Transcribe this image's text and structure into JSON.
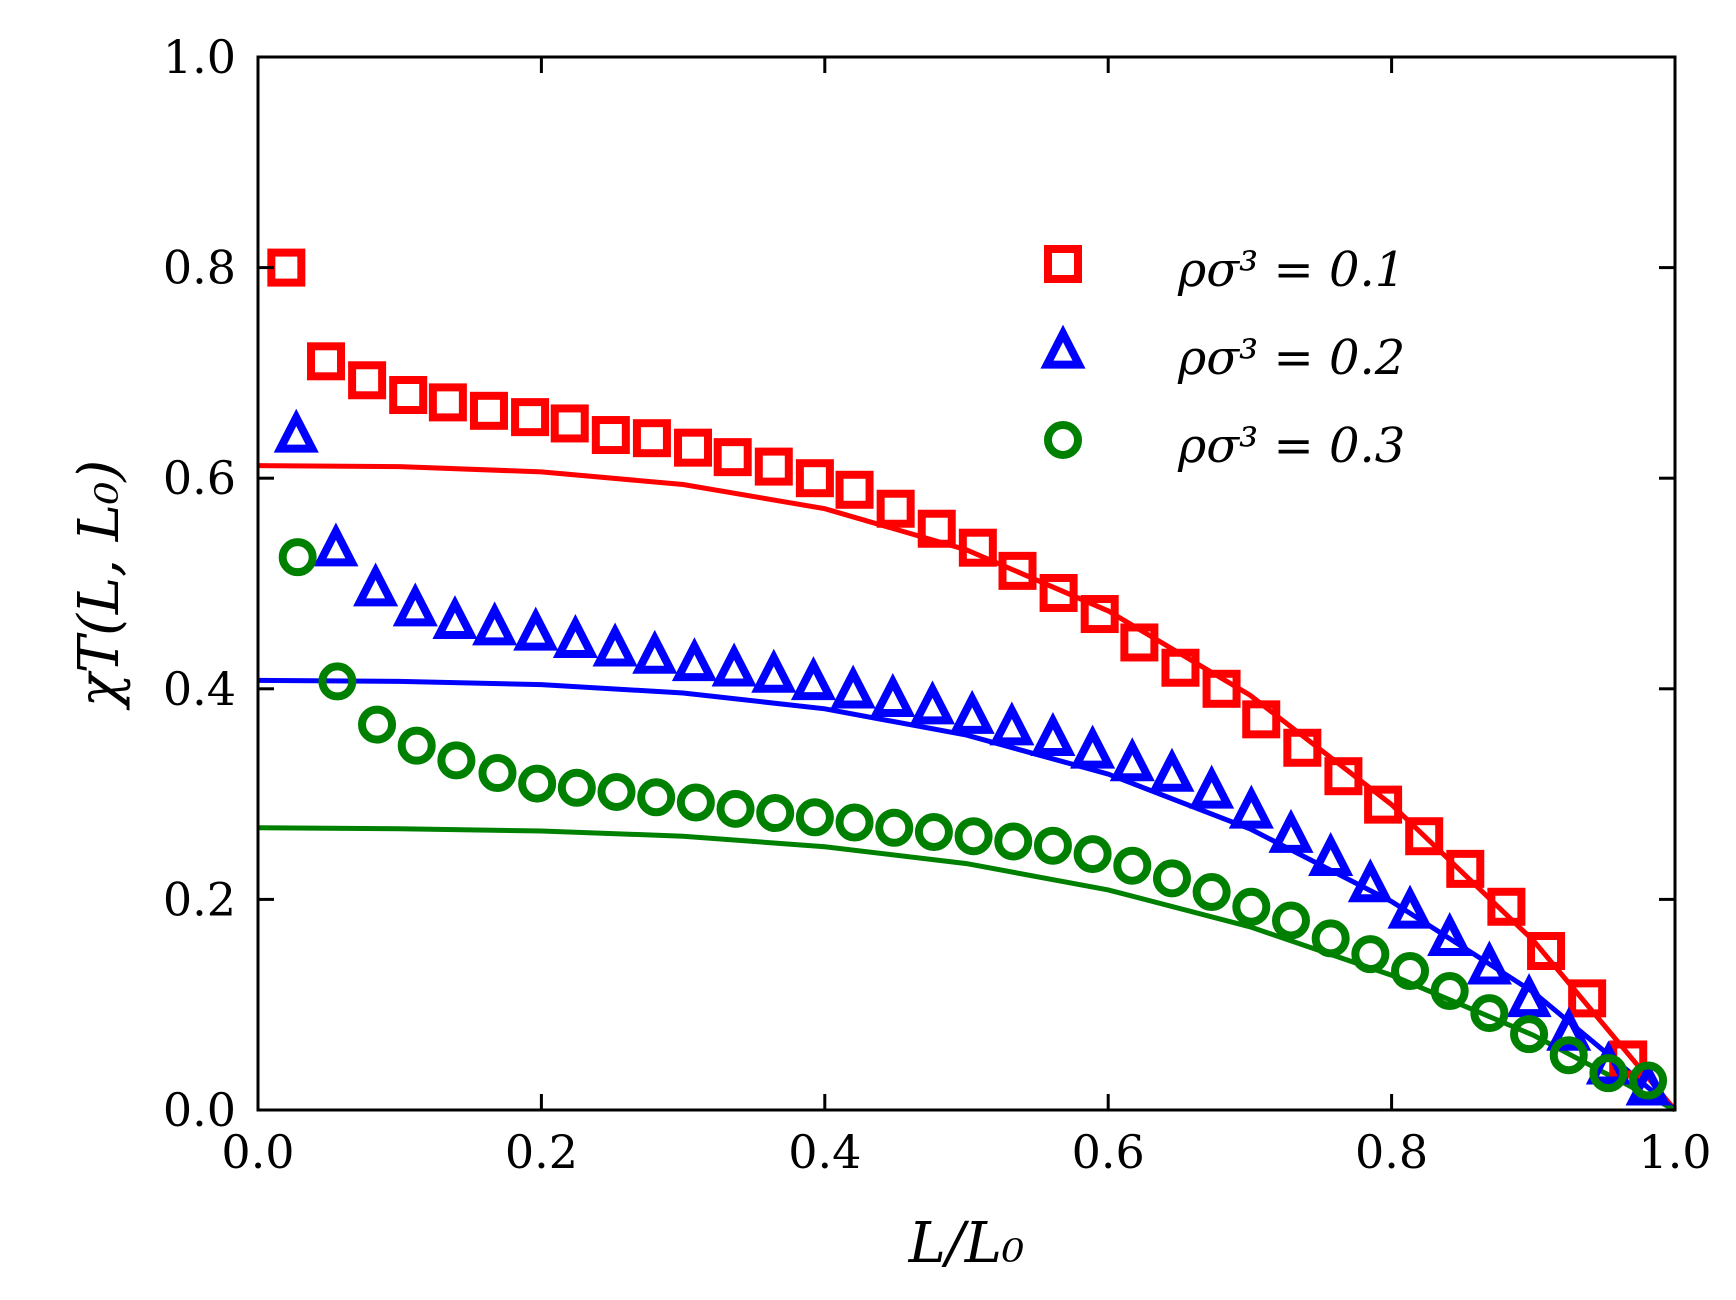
{
  "chart_data": {
    "type": "scatter",
    "title": "",
    "xlabel": "L/L₀",
    "ylabel": "χT(L, L₀)",
    "xlim": [
      0.0,
      1.0
    ],
    "ylim": [
      0.0,
      1.0
    ],
    "xticks": [
      "0.0",
      "0.2",
      "0.4",
      "0.6",
      "0.8",
      "1.0"
    ],
    "yticks": [
      "0.0",
      "0.2",
      "0.4",
      "0.6",
      "0.8",
      "1.0"
    ],
    "grid": false,
    "legend_position": "top-right",
    "series": [
      {
        "name": "ρσ³ = 0.1",
        "color": "#ff0000",
        "marker": "square",
        "x": [
          0.02,
          0.048,
          0.077,
          0.106,
          0.134,
          0.163,
          0.192,
          0.22,
          0.249,
          0.278,
          0.307,
          0.335,
          0.364,
          0.393,
          0.421,
          0.45,
          0.479,
          0.508,
          0.536,
          0.565,
          0.594,
          0.622,
          0.651,
          0.68,
          0.708,
          0.737,
          0.766,
          0.794,
          0.823,
          0.852,
          0.881,
          0.909,
          0.938,
          0.967
        ],
        "values": [
          0.8,
          0.711,
          0.693,
          0.679,
          0.672,
          0.664,
          0.658,
          0.652,
          0.641,
          0.638,
          0.629,
          0.62,
          0.611,
          0.6,
          0.589,
          0.571,
          0.552,
          0.534,
          0.512,
          0.491,
          0.471,
          0.444,
          0.42,
          0.4,
          0.371,
          0.344,
          0.317,
          0.29,
          0.26,
          0.229,
          0.193,
          0.151,
          0.106,
          0.048
        ],
        "curve_x": [
          0.0,
          0.1,
          0.2,
          0.3,
          0.4,
          0.5,
          0.6,
          0.7,
          0.8,
          0.9,
          1.0
        ],
        "curve_y": [
          0.612,
          0.611,
          0.606,
          0.594,
          0.571,
          0.532,
          0.474,
          0.394,
          0.29,
          0.161,
          0.0
        ]
      },
      {
        "name": "ρσ³ = 0.2",
        "color": "#0000ff",
        "marker": "triangle",
        "x": [
          0.027,
          0.055,
          0.083,
          0.111,
          0.139,
          0.167,
          0.196,
          0.224,
          0.252,
          0.28,
          0.308,
          0.336,
          0.364,
          0.392,
          0.42,
          0.448,
          0.476,
          0.504,
          0.532,
          0.561,
          0.589,
          0.617,
          0.645,
          0.673,
          0.701,
          0.729,
          0.757,
          0.785,
          0.813,
          0.841,
          0.869,
          0.897,
          0.925,
          0.953,
          0.981
        ],
        "values": [
          0.64,
          0.532,
          0.494,
          0.475,
          0.463,
          0.457,
          0.452,
          0.445,
          0.437,
          0.43,
          0.423,
          0.418,
          0.412,
          0.405,
          0.397,
          0.389,
          0.382,
          0.373,
          0.362,
          0.352,
          0.34,
          0.328,
          0.318,
          0.302,
          0.283,
          0.26,
          0.238,
          0.213,
          0.188,
          0.162,
          0.135,
          0.104,
          0.072,
          0.04,
          0.02
        ],
        "curve_x": [
          0.0,
          0.1,
          0.2,
          0.3,
          0.4,
          0.5,
          0.6,
          0.7,
          0.8,
          0.9,
          1.0
        ],
        "curve_y": [
          0.408,
          0.407,
          0.404,
          0.396,
          0.381,
          0.356,
          0.319,
          0.267,
          0.198,
          0.112,
          0.0
        ]
      },
      {
        "name": "ρσ³ = 0.3",
        "color": "#008000",
        "marker": "circle",
        "x": [
          0.028,
          0.056,
          0.084,
          0.112,
          0.14,
          0.169,
          0.197,
          0.225,
          0.253,
          0.281,
          0.309,
          0.337,
          0.365,
          0.393,
          0.421,
          0.449,
          0.477,
          0.505,
          0.533,
          0.561,
          0.589,
          0.617,
          0.645,
          0.673,
          0.701,
          0.729,
          0.757,
          0.785,
          0.813,
          0.841,
          0.869,
          0.897,
          0.925,
          0.953,
          0.981
        ],
        "values": [
          0.525,
          0.407,
          0.366,
          0.346,
          0.332,
          0.32,
          0.31,
          0.306,
          0.302,
          0.297,
          0.292,
          0.286,
          0.282,
          0.278,
          0.273,
          0.268,
          0.264,
          0.26,
          0.255,
          0.251,
          0.243,
          0.232,
          0.22,
          0.207,
          0.193,
          0.18,
          0.163,
          0.148,
          0.132,
          0.113,
          0.092,
          0.072,
          0.052,
          0.035,
          0.028
        ],
        "curve_x": [
          0.0,
          0.1,
          0.2,
          0.3,
          0.4,
          0.5,
          0.6,
          0.7,
          0.8,
          0.9,
          1.0
        ],
        "curve_y": [
          0.268,
          0.267,
          0.265,
          0.26,
          0.25,
          0.234,
          0.209,
          0.174,
          0.128,
          0.071,
          0.0
        ]
      }
    ]
  }
}
